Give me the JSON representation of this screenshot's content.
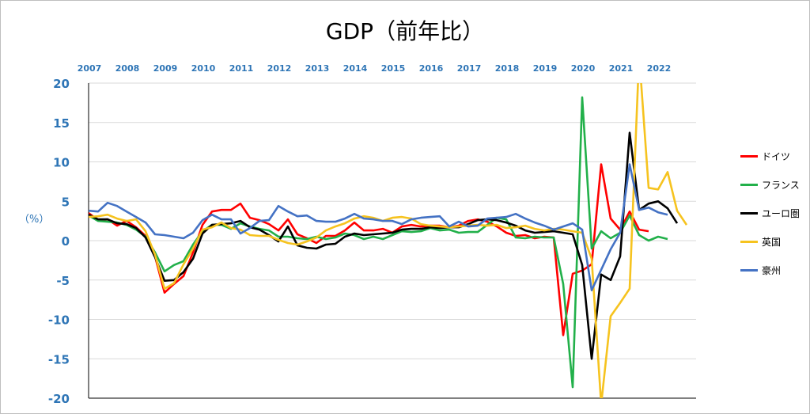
{
  "chart_data": {
    "type": "line",
    "title": "GDP（前年比）",
    "ylabel": "（%）",
    "ylim": [
      -20,
      20
    ],
    "yticks": [
      20,
      15,
      10,
      5,
      0,
      -5,
      -10,
      -15,
      -20
    ],
    "year_labels": [
      "2007",
      "2008",
      "2009",
      "2010",
      "2011",
      "2012",
      "2013",
      "2014",
      "2015",
      "2016",
      "2017",
      "2018",
      "2019",
      "2020",
      "2021",
      "2022"
    ],
    "x_start": 2007.0,
    "x_step": 0.25,
    "grid": true,
    "legend": "right",
    "series": [
      {
        "name": "ドイツ",
        "color": "#ff0000",
        "values": [
          3.5,
          2.6,
          2.7,
          1.9,
          2.5,
          1.7,
          0.6,
          -2.0,
          -6.6,
          -5.5,
          -4.5,
          -1.5,
          2.0,
          3.7,
          3.9,
          3.9,
          4.7,
          2.9,
          2.6,
          2.1,
          1.3,
          2.7,
          0.8,
          0.3,
          -0.3,
          0.6,
          0.6,
          1.3,
          2.3,
          1.3,
          1.3,
          1.5,
          1.0,
          1.8,
          2.0,
          1.8,
          1.9,
          1.9,
          1.7,
          1.9,
          2.5,
          2.7,
          2.4,
          1.8,
          1.0,
          0.6,
          0.7,
          0.3,
          0.5,
          0.4,
          -12.0,
          -4.2,
          -3.8,
          -3.0,
          9.7,
          2.8,
          1.4,
          3.7,
          1.4,
          1.2
        ]
      },
      {
        "name": "フランス",
        "color": "#22b04a",
        "values": [
          3.2,
          2.5,
          2.4,
          2.3,
          2.0,
          1.4,
          0.5,
          -1.5,
          -3.9,
          -3.1,
          -2.6,
          -0.5,
          1.2,
          2.0,
          2.0,
          1.5,
          2.2,
          1.8,
          1.5,
          1.3,
          0.5,
          0.5,
          0.3,
          0.2,
          0.5,
          0.2,
          0.4,
          0.9,
          0.7,
          0.2,
          0.5,
          0.2,
          0.7,
          1.2,
          1.1,
          1.2,
          1.6,
          1.3,
          1.4,
          1.0,
          1.1,
          1.1,
          2.0,
          2.9,
          2.7,
          0.4,
          0.3,
          0.5,
          0.4,
          0.4,
          -5.5,
          -18.6,
          18.2,
          -1.0,
          1.2,
          0.3,
          1.0,
          3.2,
          0.7,
          0.0,
          0.5,
          0.2
        ]
      },
      {
        "name": "ユーロ圏",
        "color": "#000000",
        "values": [
          3.3,
          2.7,
          2.7,
          2.2,
          2.1,
          1.6,
          0.4,
          -2.1,
          -5.1,
          -5.0,
          -4.0,
          -2.3,
          0.9,
          2.0,
          2.1,
          2.2,
          2.5,
          1.7,
          1.4,
          0.7,
          -0.1,
          1.8,
          -0.6,
          -0.9,
          -1.0,
          -0.5,
          -0.4,
          0.5,
          0.9,
          0.7,
          0.8,
          0.9,
          1.0,
          1.4,
          1.5,
          1.5,
          1.7,
          1.6,
          1.7,
          1.7,
          2.1,
          2.6,
          2.7,
          2.6,
          2.3,
          1.9,
          1.3,
          1.0,
          1.1,
          1.2,
          1.0,
          0.8,
          -3.1,
          -15.0,
          -4.3,
          -5.0,
          -2.0,
          13.7,
          3.9,
          4.7,
          5.0,
          4.1,
          2.2
        ]
      },
      {
        "name": "英国",
        "color": "#f6c31f",
        "values": [
          3.0,
          3.1,
          3.3,
          2.8,
          2.5,
          2.7,
          1.2,
          -1.8,
          -6.1,
          -5.4,
          -3.0,
          -1.0,
          1.4,
          1.7,
          2.3,
          1.6,
          1.4,
          0.7,
          0.6,
          0.6,
          0.1,
          -0.3,
          -0.5,
          -0.1,
          0.4,
          1.3,
          1.8,
          2.2,
          2.8,
          3.1,
          2.9,
          2.5,
          2.9,
          3.0,
          2.8,
          2.1,
          1.9,
          1.8,
          1.7,
          1.8,
          1.9,
          2.0,
          1.9,
          2.0,
          1.6,
          1.7,
          1.9,
          1.5,
          1.3,
          1.5,
          1.4,
          1.2,
          1.0,
          -2.3,
          -20.8,
          -9.6,
          -7.9,
          -6.1,
          23.6,
          6.7,
          6.5,
          8.7,
          3.8,
          2.0
        ]
      },
      {
        "name": "豪州",
        "color": "#4472c4",
        "values": [
          3.8,
          3.7,
          4.8,
          4.4,
          3.7,
          3.0,
          2.3,
          0.8,
          0.7,
          0.5,
          0.3,
          1.0,
          2.6,
          3.3,
          2.7,
          2.7,
          0.9,
          1.6,
          2.5,
          2.6,
          4.4,
          3.7,
          3.1,
          3.2,
          2.5,
          2.4,
          2.4,
          2.8,
          3.4,
          2.8,
          2.7,
          2.5,
          2.5,
          2.1,
          2.7,
          2.9,
          3.0,
          3.1,
          1.8,
          2.4,
          1.8,
          1.9,
          2.8,
          2.9,
          3.0,
          3.4,
          2.8,
          2.3,
          1.9,
          1.4,
          1.8,
          2.2,
          1.4,
          -6.3,
          -3.7,
          -1.1,
          1.0,
          9.7,
          3.9,
          4.2,
          3.6,
          3.3
        ]
      }
    ]
  }
}
